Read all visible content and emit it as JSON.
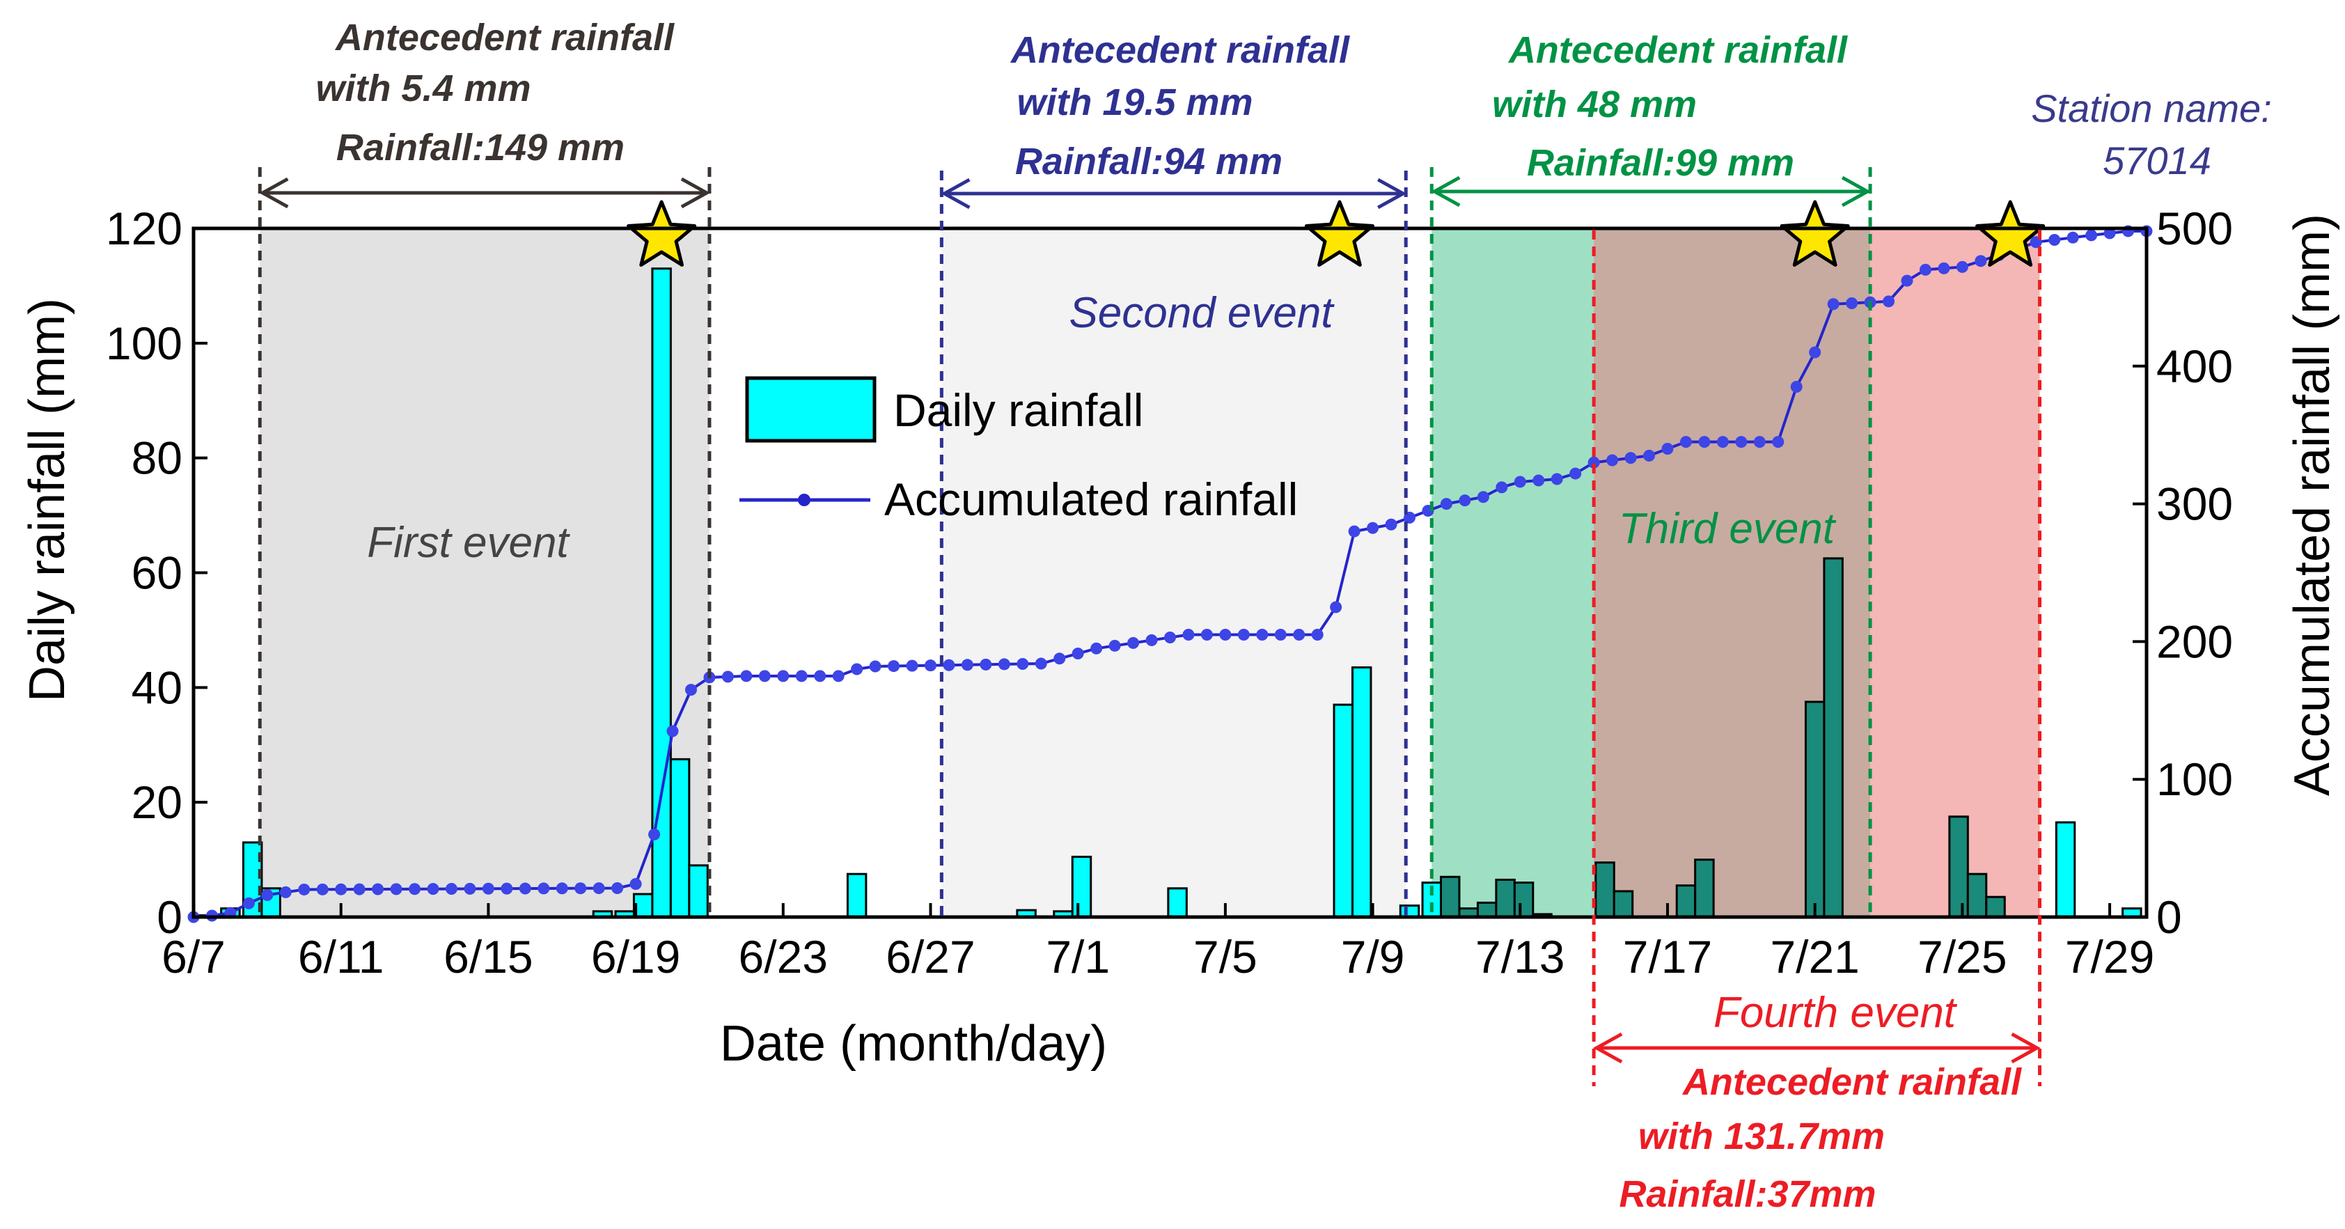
{
  "chart_data": {
    "type": "bar+line",
    "xlabel": "Date (month/day)",
    "ylabel_left": "Daily rainfall (mm)",
    "ylabel_right": "Accumulated rainfall (mm)",
    "ylim_left": [
      0,
      120
    ],
    "ylim_right": [
      0,
      500
    ],
    "yticks_left": [
      0,
      20,
      40,
      60,
      80,
      100,
      120
    ],
    "yticks_right": [
      0,
      100,
      200,
      300,
      400,
      500
    ],
    "day_range": [
      0,
      53
    ],
    "x_ticks": [
      {
        "day": 0,
        "label": "6/7"
      },
      {
        "day": 4,
        "label": "6/11"
      },
      {
        "day": 8,
        "label": "6/15"
      },
      {
        "day": 12,
        "label": "6/19"
      },
      {
        "day": 16,
        "label": "6/23"
      },
      {
        "day": 20,
        "label": "6/27"
      },
      {
        "day": 24,
        "label": "7/1"
      },
      {
        "day": 28,
        "label": "7/5"
      },
      {
        "day": 32,
        "label": "7/9"
      },
      {
        "day": 36,
        "label": "7/13"
      },
      {
        "day": 40,
        "label": "7/17"
      },
      {
        "day": 44,
        "label": "7/21"
      },
      {
        "day": 48,
        "label": "7/25"
      },
      {
        "day": 52,
        "label": "7/29"
      }
    ],
    "daily_rainfall": [
      {
        "day": 0.4,
        "value": 0.3
      },
      {
        "day": 1.0,
        "value": 1.5
      },
      {
        "day": 1.6,
        "value": 13
      },
      {
        "day": 2.1,
        "value": 5
      },
      {
        "day": 11.1,
        "value": 1
      },
      {
        "day": 11.7,
        "value": 1
      },
      {
        "day": 12.2,
        "value": 4
      },
      {
        "day": 12.7,
        "value": 113
      },
      {
        "day": 13.2,
        "value": 27.5
      },
      {
        "day": 13.7,
        "value": 9
      },
      {
        "day": 18.0,
        "value": 7.5
      },
      {
        "day": 22.6,
        "value": 1.2
      },
      {
        "day": 23.6,
        "value": 1
      },
      {
        "day": 24.1,
        "value": 10.5
      },
      {
        "day": 26.7,
        "value": 5
      },
      {
        "day": 31.2,
        "value": 37
      },
      {
        "day": 31.7,
        "value": 43.5
      },
      {
        "day": 33.0,
        "value": 2
      },
      {
        "day": 33.6,
        "value": 6
      },
      {
        "day": 34.1,
        "value": 7
      },
      {
        "day": 34.6,
        "value": 1.5
      },
      {
        "day": 35.1,
        "value": 2.5
      },
      {
        "day": 35.6,
        "value": 6.5
      },
      {
        "day": 36.1,
        "value": 6
      },
      {
        "day": 36.6,
        "value": 0.5
      },
      {
        "day": 38.3,
        "value": 9.5
      },
      {
        "day": 38.8,
        "value": 4.5
      },
      {
        "day": 40.5,
        "value": 5.5
      },
      {
        "day": 41.0,
        "value": 10
      },
      {
        "day": 44.0,
        "value": 37.5
      },
      {
        "day": 44.5,
        "value": 62.5
      },
      {
        "day": 47.9,
        "value": 17.5
      },
      {
        "day": 48.4,
        "value": 7.5
      },
      {
        "day": 48.9,
        "value": 3.5
      },
      {
        "day": 50.8,
        "value": 16.5
      },
      {
        "day": 52.6,
        "value": 1.5
      }
    ],
    "accumulated_rainfall": [
      [
        0,
        0
      ],
      [
        0.5,
        1
      ],
      [
        1,
        3
      ],
      [
        1.5,
        10
      ],
      [
        2,
        16
      ],
      [
        2.5,
        18
      ],
      [
        3,
        20
      ],
      [
        11.5,
        21
      ],
      [
        12,
        24
      ],
      [
        12.5,
        60
      ],
      [
        13,
        135
      ],
      [
        13.5,
        165
      ],
      [
        14,
        174
      ],
      [
        15,
        175
      ],
      [
        17.5,
        175
      ],
      [
        18,
        180
      ],
      [
        18.5,
        182
      ],
      [
        23,
        184
      ],
      [
        24.5,
        195
      ],
      [
        27,
        205
      ],
      [
        30.5,
        205
      ],
      [
        31,
        225
      ],
      [
        31.5,
        280
      ],
      [
        32.5,
        285
      ],
      [
        33,
        290
      ],
      [
        33.5,
        295
      ],
      [
        34,
        300
      ],
      [
        35,
        305
      ],
      [
        35.5,
        312
      ],
      [
        36,
        316
      ],
      [
        37,
        318
      ],
      [
        37.5,
        322
      ],
      [
        38,
        330
      ],
      [
        39.5,
        335
      ],
      [
        40,
        340
      ],
      [
        40.5,
        345
      ],
      [
        42.5,
        345
      ],
      [
        43,
        345
      ],
      [
        43.5,
        385
      ],
      [
        44,
        410
      ],
      [
        44.5,
        445
      ],
      [
        46,
        447
      ],
      [
        46.5,
        462
      ],
      [
        47,
        470
      ],
      [
        48,
        472
      ],
      [
        49.5,
        485
      ],
      [
        50,
        490
      ],
      [
        51.5,
        495
      ],
      [
        52.5,
        498
      ],
      [
        53,
        498
      ]
    ],
    "events": [
      {
        "name": "First event",
        "antecedent": "Antecedent rainfall",
        "antecedent_value": "with 5.4 mm",
        "rainfall": "Rainfall:149 mm",
        "start_day": 1.8,
        "end_day": 14.0,
        "fill": "#e2e2e2",
        "color": "#3a3330"
      },
      {
        "name": "Second event",
        "antecedent": "Antecedent rainfall",
        "antecedent_value": "with 19.5 mm",
        "rainfall": "Rainfall:94 mm",
        "start_day": 20.3,
        "end_day": 32.9,
        "fill": "#f3f3f3",
        "color": "#2e3192"
      },
      {
        "name": "Third  event",
        "antecedent": "Antecedent rainfall",
        "antecedent_value": "with  48 mm",
        "rainfall": "Rainfall:99 mm",
        "start_day": 33.6,
        "end_day": 45.5,
        "fill": "#9fe0c4",
        "color": "#009245"
      },
      {
        "name": "Fourth  event",
        "antecedent": "Antecedent rainfall",
        "antecedent_value": "with  131.7mm",
        "rainfall": "Rainfall:37mm",
        "start_day": 38.0,
        "end_day": 50.1,
        "fill": "#f4b7b5",
        "color": "#ed1c24"
      }
    ],
    "overlap_fill": "#c7aba1",
    "stars": [
      {
        "day": 12.7
      },
      {
        "day": 31.1
      },
      {
        "day": 44.0
      },
      {
        "day": 49.3
      }
    ],
    "station_label": "Station name:",
    "station_id": "57014",
    "legend": [
      {
        "label": "Daily rainfall",
        "kind": "bar"
      },
      {
        "label": "Accumulated rainfall",
        "kind": "line"
      }
    ],
    "colors": {
      "bar": "#00ffff",
      "bar_dark": "#1a8a7a",
      "line": "#2525cc",
      "dot": "#3d45e6",
      "star": "#ffe600"
    }
  }
}
